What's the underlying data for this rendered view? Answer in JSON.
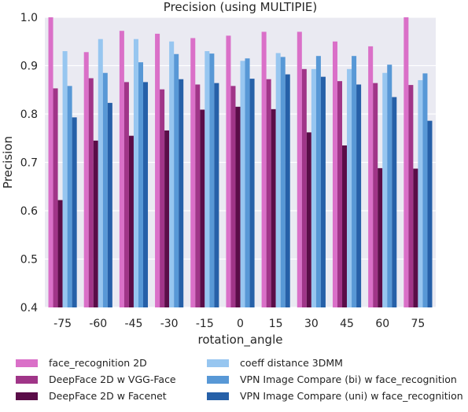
{
  "chart_data": {
    "type": "bar",
    "title": "Precision (using MULTIPIE)",
    "xlabel": "rotation_angle",
    "ylabel": "Precision",
    "ylim": [
      0.4,
      1.0
    ],
    "yticks": [
      "0.4",
      "0.5",
      "0.6",
      "0.7",
      "0.8",
      "0.9",
      "1.0"
    ],
    "grid": true,
    "legend_position": "bottom",
    "categories": [
      "-75",
      "-60",
      "-45",
      "-30",
      "-15",
      "0",
      "15",
      "30",
      "45",
      "60",
      "75"
    ],
    "series": [
      {
        "name": "face_recognition 2D",
        "color": "#da70c8",
        "values": [
          1.0,
          0.928,
          0.972,
          0.966,
          0.957,
          0.962,
          0.97,
          0.97,
          0.95,
          0.94,
          1.0
        ]
      },
      {
        "name": "DeepFace 2D w VGG-Face",
        "color": "#a03588",
        "values": [
          0.853,
          0.874,
          0.866,
          0.851,
          0.861,
          0.858,
          0.872,
          0.893,
          0.868,
          0.864,
          0.86
        ]
      },
      {
        "name": "DeepFace 2D w Facenet",
        "color": "#5a0d48",
        "values": [
          0.622,
          0.745,
          0.755,
          0.766,
          0.809,
          0.815,
          0.81,
          0.762,
          0.735,
          0.688,
          0.687
        ]
      },
      {
        "name": "coeff distance 3DMM",
        "color": "#97c6f0",
        "values": [
          0.93,
          0.955,
          0.955,
          0.95,
          0.93,
          0.91,
          0.926,
          0.893,
          0.893,
          0.885,
          0.87
        ]
      },
      {
        "name": "VPN Image Compare (bi) w face_recognition",
        "color": "#5898d6",
        "values": [
          0.858,
          0.885,
          0.907,
          0.924,
          0.925,
          0.915,
          0.918,
          0.92,
          0.92,
          0.902,
          0.884
        ]
      },
      {
        "name": "VPN Image Compare (uni) w face_recognition",
        "color": "#2660a8",
        "values": [
          0.793,
          0.823,
          0.866,
          0.872,
          0.864,
          0.873,
          0.882,
          0.877,
          0.861,
          0.835,
          0.786
        ]
      }
    ]
  }
}
